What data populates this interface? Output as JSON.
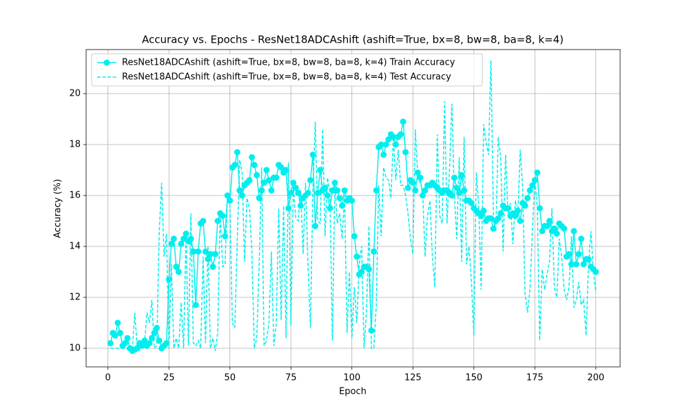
{
  "chart_data": {
    "type": "line",
    "title": "Accuracy vs. Epochs - ResNet18ADCAshift (ashift=True, bx=8, bw=8, ba=8, k=4)",
    "x_label": "Epoch",
    "y_label": "Accuracy (%)",
    "x": [
      1,
      2,
      3,
      4,
      5,
      6,
      7,
      8,
      9,
      10,
      11,
      12,
      13,
      14,
      15,
      16,
      17,
      18,
      19,
      20,
      21,
      22,
      23,
      24,
      25,
      26,
      27,
      28,
      29,
      30,
      31,
      32,
      33,
      34,
      35,
      36,
      37,
      38,
      39,
      40,
      41,
      42,
      43,
      44,
      45,
      46,
      47,
      48,
      49,
      50,
      51,
      52,
      53,
      54,
      55,
      56,
      57,
      58,
      59,
      60,
      61,
      62,
      63,
      64,
      65,
      66,
      67,
      68,
      69,
      70,
      71,
      72,
      73,
      74,
      75,
      76,
      77,
      78,
      79,
      80,
      81,
      82,
      83,
      84,
      85,
      86,
      87,
      88,
      89,
      90,
      91,
      92,
      93,
      94,
      95,
      96,
      97,
      98,
      99,
      100,
      101,
      102,
      103,
      104,
      105,
      106,
      107,
      108,
      109,
      110,
      111,
      112,
      113,
      114,
      115,
      116,
      117,
      118,
      119,
      120,
      121,
      122,
      123,
      124,
      125,
      126,
      127,
      128,
      129,
      130,
      131,
      132,
      133,
      134,
      135,
      136,
      137,
      138,
      139,
      140,
      141,
      142,
      143,
      144,
      145,
      146,
      147,
      148,
      149,
      150,
      151,
      152,
      153,
      154,
      155,
      156,
      157,
      158,
      159,
      160,
      161,
      162,
      163,
      164,
      165,
      166,
      167,
      168,
      169,
      170,
      171,
      172,
      173,
      174,
      175,
      176,
      177,
      178,
      179,
      180,
      181,
      182,
      183,
      184,
      185,
      186,
      187,
      188,
      189,
      190,
      191,
      192,
      193,
      194,
      195,
      196,
      197,
      198,
      199,
      200
    ],
    "series": [
      {
        "name": "ResNet18ADCAshift (ashift=True, bx=8, bw=8, ba=8, k=4) Train Accuracy",
        "color": "#00eeee",
        "style": "solid",
        "marker": true,
        "values": [
          10.2,
          10.6,
          10.5,
          11.0,
          10.6,
          10.1,
          10.2,
          10.4,
          10.0,
          9.9,
          9.95,
          10.0,
          10.2,
          10.1,
          10.3,
          10.1,
          10.2,
          10.4,
          10.6,
          10.8,
          10.3,
          10.0,
          10.1,
          10.2,
          12.7,
          14.1,
          14.3,
          13.2,
          13.0,
          14.1,
          14.3,
          14.5,
          14.2,
          14.3,
          13.8,
          11.7,
          13.8,
          14.9,
          15.0,
          13.8,
          13.5,
          13.7,
          13.2,
          13.7,
          15.0,
          15.3,
          15.2,
          14.4,
          16.0,
          15.8,
          17.1,
          17.2,
          17.7,
          16.2,
          16.0,
          16.4,
          16.5,
          16.6,
          17.5,
          17.2,
          16.8,
          15.9,
          16.2,
          16.5,
          17.0,
          16.6,
          16.2,
          16.7,
          16.7,
          17.2,
          17.1,
          16.9,
          17.0,
          15.5,
          16.1,
          16.5,
          16.3,
          16.1,
          15.6,
          15.9,
          16.0,
          16.1,
          16.6,
          17.6,
          14.8,
          16.1,
          17.0,
          16.2,
          16.3,
          16.0,
          15.5,
          16.2,
          16.5,
          16.2,
          15.9,
          15.6,
          16.2,
          15.8,
          15.9,
          15.8,
          14.4,
          13.6,
          12.9,
          13.0,
          13.2,
          13.2,
          13.1,
          10.7,
          13.8,
          16.2,
          17.9,
          18.0,
          17.6,
          18.0,
          18.2,
          18.4,
          18.3,
          18.0,
          18.3,
          18.4,
          18.9,
          17.7,
          16.3,
          16.6,
          16.5,
          16.2,
          16.9,
          16.7,
          16.0,
          16.2,
          16.4,
          16.4,
          16.5,
          16.4,
          16.3,
          16.2,
          16.1,
          16.2,
          16.2,
          16.1,
          16.0,
          16.7,
          16.3,
          16.1,
          16.8,
          16.2,
          15.8,
          15.8,
          15.7,
          15.5,
          15.4,
          15.3,
          15.2,
          15.4,
          15.0,
          15.1,
          15.1,
          14.7,
          15.0,
          15.1,
          15.3,
          15.6,
          15.5,
          15.5,
          15.2,
          15.3,
          15.2,
          15.4,
          15.0,
          15.7,
          15.6,
          15.9,
          16.2,
          16.4,
          16.6,
          16.9,
          15.5,
          14.6,
          14.8,
          14.8,
          15.0,
          14.6,
          14.7,
          14.5,
          14.9,
          14.8,
          14.7,
          13.6,
          13.7,
          13.3,
          14.6,
          13.3,
          13.7,
          14.3,
          13.3,
          13.5,
          13.5,
          13.2,
          13.1,
          13.0
        ]
      },
      {
        "name": "ResNet18ADCAshift (ashift=True, bx=8, bw=8, ba=8, k=4) Test Accuracy",
        "color": "#00eeee",
        "style": "dashed",
        "marker": false,
        "values": [
          10.0,
          10.0,
          10.0,
          10.0,
          10.0,
          10.0,
          10.0,
          10.0,
          10.0,
          10.0,
          11.4,
          10.0,
          10.0,
          10.0,
          10.2,
          11.4,
          11.0,
          11.9,
          10.0,
          10.1,
          14.5,
          16.5,
          13.6,
          14.5,
          10.0,
          13.3,
          10.0,
          10.4,
          10.0,
          11.8,
          10.0,
          14.5,
          10.1,
          15.3,
          10.2,
          10.1,
          10.3,
          10.0,
          13.6,
          10.2,
          14.0,
          10.0,
          10.4,
          9.9,
          10.6,
          15.4,
          13.2,
          13.3,
          16.0,
          15.6,
          11.0,
          10.8,
          14.2,
          17.4,
          16.9,
          13.4,
          15.9,
          15.5,
          13.8,
          10.0,
          10.4,
          13.3,
          17.1,
          10.1,
          10.3,
          11.0,
          13.8,
          10.1,
          11.0,
          15.5,
          11.1,
          15.6,
          10.4,
          17.3,
          10.9,
          16.3,
          15.1,
          15.0,
          16.2,
          13.7,
          16.5,
          13.3,
          10.8,
          16.2,
          18.9,
          15.0,
          14.9,
          18.6,
          14.4,
          16.7,
          16.1,
          10.3,
          16.5,
          14.9,
          15.3,
          14.3,
          16.0,
          10.6,
          13.0,
          10.4,
          12.4,
          11.0,
          13.3,
          14.0,
          10.0,
          11.5,
          14.8,
          10.0,
          10.0,
          11.7,
          16.4,
          14.4,
          17.1,
          16.7,
          16.6,
          15.9,
          18.3,
          16.6,
          17.8,
          16.4,
          16.4,
          16.0,
          15.3,
          14.3,
          13.7,
          18.6,
          16.8,
          16.5,
          16.2,
          13.6,
          15.2,
          15.8,
          13.6,
          12.4,
          18.4,
          15.2,
          14.9,
          19.7,
          14.9,
          17.0,
          19.6,
          16.0,
          14.3,
          17.5,
          13.4,
          18.3,
          13.3,
          14.0,
          12.6,
          10.5,
          16.9,
          15.6,
          12.3,
          18.8,
          18.1,
          17.6,
          21.3,
          15.3,
          14.6,
          18.3,
          17.5,
          13.8,
          17.6,
          15.3,
          15.7,
          14.1,
          15.8,
          15.2,
          17.8,
          16.3,
          12.1,
          11.4,
          12.3,
          14.6,
          16.7,
          15.5,
          10.3,
          13.1,
          12.3,
          12.9,
          13.4,
          15.5,
          12.4,
          12.0,
          14.3,
          13.6,
          12.3,
          11.9,
          12.4,
          14.4,
          11.6,
          11.9,
          12.6,
          11.7,
          11.9,
          10.5,
          13.3,
          14.6,
          13.0,
          12.2
        ]
      }
    ],
    "xlim": [
      -8.95,
      209.95
    ],
    "ylim": [
      9.27,
      21.73
    ],
    "xticks": [
      0,
      25,
      50,
      75,
      100,
      125,
      150,
      175,
      200
    ],
    "yticks": [
      10,
      12,
      14,
      16,
      18,
      20
    ],
    "grid": true,
    "legend": "upper left"
  }
}
